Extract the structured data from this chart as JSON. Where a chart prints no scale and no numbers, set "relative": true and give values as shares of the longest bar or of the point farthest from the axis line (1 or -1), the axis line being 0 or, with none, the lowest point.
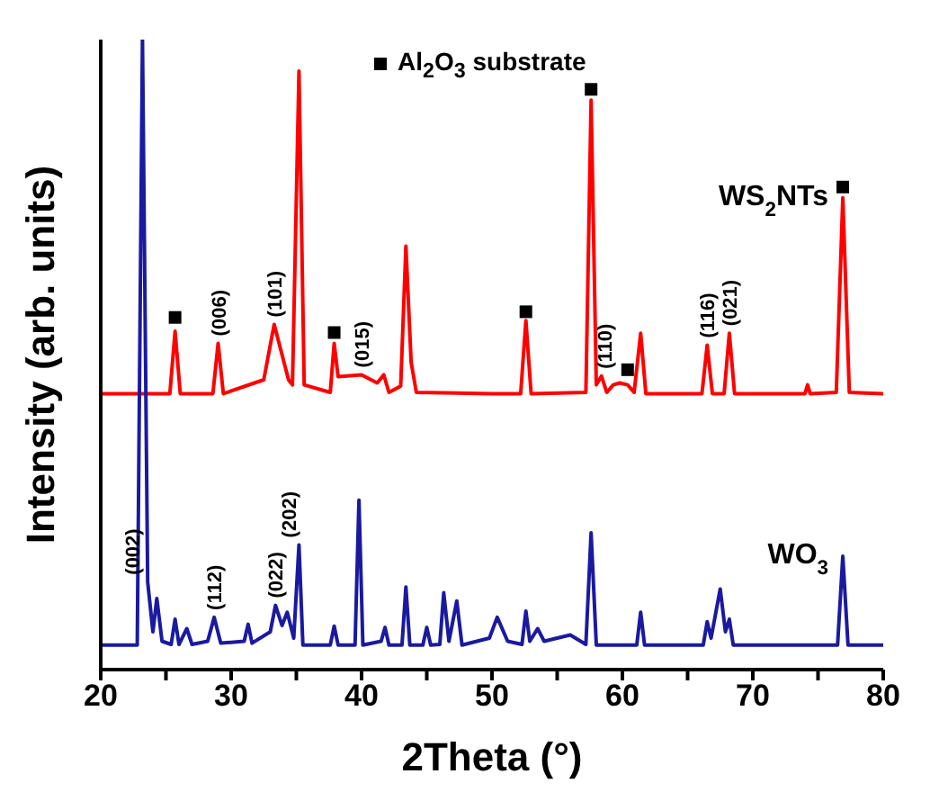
{
  "chart_data": {
    "type": "line",
    "relative": true,
    "xlabel": "2Theta (°)",
    "ylabel": "Intensity (arb. units)",
    "xlim": [
      20,
      80
    ],
    "xticks": [
      20,
      {
        "value": 25,
        "label": null
      },
      30,
      {
        "value": 35,
        "label": null
      },
      40,
      {
        "value": 45,
        "label": null
      },
      50,
      {
        "value": 55,
        "label": null
      },
      60,
      {
        "value": 65,
        "label": null
      },
      70,
      {
        "value": 75,
        "label": null
      },
      80
    ],
    "grid": false,
    "legend": "top",
    "marker": "none",
    "line_style": "solid",
    "series": [
      {
        "name": "WS$_{2}$NTs",
        "color": "#ff0000",
        "x": [
          20,
          25.3,
          25.7,
          26.1,
          28.6,
          29.0,
          29.4,
          32.5,
          33.3,
          34.4,
          34.7,
          35.2,
          35.6,
          37.6,
          37.9,
          38.2,
          40.0,
          41.2,
          41.7,
          42.1,
          43.0,
          43.4,
          43.8,
          44.2,
          50.0,
          52.2,
          52.6,
          53.0,
          57.2,
          57.6,
          58.0,
          58.4,
          58.8,
          59.3,
          59.8,
          60.4,
          60.9,
          61.4,
          61.8,
          66.1,
          66.5,
          66.9,
          67.8,
          68.2,
          68.6,
          74.0,
          74.2,
          74.4,
          76.4,
          76.9,
          77.4,
          80
        ],
        "values": [
          0.438,
          0.438,
          0.537,
          0.438,
          0.438,
          0.518,
          0.438,
          0.46,
          0.548,
          0.46,
          0.452,
          0.95,
          0.452,
          0.44,
          0.518,
          0.465,
          0.468,
          0.455,
          0.468,
          0.44,
          0.45,
          0.672,
          0.488,
          0.44,
          0.438,
          0.438,
          0.554,
          0.438,
          0.44,
          0.904,
          0.452,
          0.466,
          0.44,
          0.452,
          0.455,
          0.452,
          0.44,
          0.534,
          0.438,
          0.438,
          0.515,
          0.438,
          0.438,
          0.534,
          0.438,
          0.438,
          0.452,
          0.438,
          0.44,
          0.749,
          0.44,
          0.438
        ]
      },
      {
        "name": "WO$_{3}$",
        "color": "#1a1aa0",
        "x": [
          20,
          22.8,
          23.2,
          23.6,
          24.0,
          24.3,
          24.7,
          25.4,
          25.7,
          26.0,
          26.6,
          27.0,
          28.2,
          28.7,
          29.2,
          31.0,
          31.3,
          31.6,
          33.0,
          33.4,
          33.9,
          34.3,
          34.8,
          35.2,
          35.5,
          37.6,
          37.9,
          38.2,
          39.5,
          39.8,
          40.1,
          41.5,
          41.8,
          42.1,
          43.1,
          43.4,
          43.7,
          44.7,
          45.0,
          45.3,
          46.0,
          46.3,
          46.7,
          47.3,
          47.7,
          49.8,
          50.4,
          51.2,
          52.3,
          52.6,
          52.9,
          53.5,
          54.0,
          56.0,
          57.2,
          57.6,
          58.0,
          61.1,
          61.4,
          61.7,
          66.2,
          66.5,
          66.8,
          67.5,
          67.9,
          68.2,
          68.5,
          76.5,
          76.9,
          77.3,
          80
        ],
        "values": [
          0.039,
          0.039,
          1.0,
          0.139,
          0.06,
          0.113,
          0.045,
          0.04,
          0.08,
          0.04,
          0.065,
          0.04,
          0.045,
          0.083,
          0.042,
          0.045,
          0.072,
          0.042,
          0.06,
          0.102,
          0.07,
          0.091,
          0.05,
          0.198,
          0.039,
          0.039,
          0.069,
          0.039,
          0.039,
          0.269,
          0.039,
          0.045,
          0.067,
          0.039,
          0.039,
          0.131,
          0.039,
          0.039,
          0.067,
          0.039,
          0.04,
          0.122,
          0.045,
          0.109,
          0.039,
          0.05,
          0.083,
          0.045,
          0.04,
          0.093,
          0.045,
          0.065,
          0.045,
          0.055,
          0.04,
          0.217,
          0.039,
          0.039,
          0.091,
          0.039,
          0.039,
          0.076,
          0.05,
          0.128,
          0.06,
          0.08,
          0.039,
          0.039,
          0.18,
          0.039,
          0.039
        ]
      },
      {
        "name": "Al$_{2}$O$_{3}$ substrate",
        "type": "scatter",
        "marker": "square",
        "color": "#000000",
        "x": [
          25.7,
          37.9,
          52.6,
          57.6,
          60.4,
          76.9
        ],
        "values": [
          0.559,
          0.535,
          0.568,
          0.921,
          0.476,
          0.766
        ]
      }
    ],
    "annotations": [
      {
        "text": "(006)",
        "x": 29.0,
        "y": 0.518
      },
      {
        "text": "(101)",
        "x": 33.3,
        "y": 0.548
      },
      {
        "text": "(015)",
        "x": 40.0,
        "y": 0.468
      },
      {
        "text": "(110)",
        "x": 58.6,
        "y": 0.466
      },
      {
        "text": "(116)",
        "x": 66.5,
        "y": 0.515
      },
      {
        "text": "(021)",
        "x": 68.2,
        "y": 0.534
      },
      {
        "text": "(002)",
        "x": 22.4,
        "y": 0.139
      },
      {
        "text": "(112)",
        "x": 28.7,
        "y": 0.083
      },
      {
        "text": "(022)",
        "x": 33.4,
        "y": 0.102
      },
      {
        "text": "(202)",
        "x": 34.4,
        "y": 0.198
      }
    ]
  }
}
